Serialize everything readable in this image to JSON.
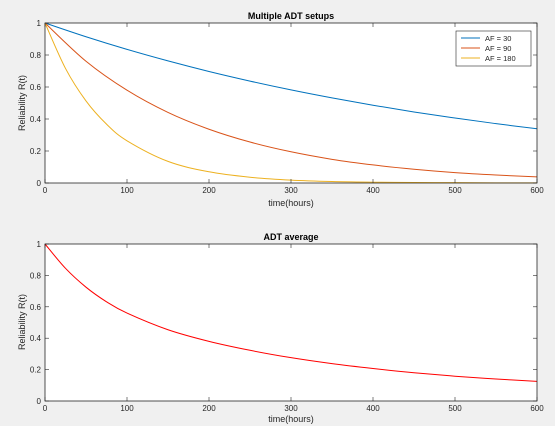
{
  "chart_data": [
    {
      "type": "line",
      "title": "Multiple ADT setups",
      "xlabel": "time(hours)",
      "ylabel": "Reliability R(t)",
      "xlim": [
        0,
        600
      ],
      "ylim": [
        0,
        1
      ],
      "xticks": [
        0,
        100,
        200,
        300,
        400,
        500,
        600
      ],
      "yticks": [
        0,
        0.2,
        0.4,
        0.6,
        0.8,
        1
      ],
      "xtick_labels": [
        "0",
        "100",
        "200",
        "300",
        "400",
        "500",
        "600"
      ],
      "ytick_labels": [
        "0",
        "0.2",
        "0.4",
        "0.6",
        "0.8",
        "1"
      ],
      "legend_position": "top-right",
      "series": [
        {
          "name": "AF = 30",
          "color": "#0072bd",
          "x": [
            0,
            50,
            100,
            150,
            200,
            250,
            300,
            350,
            400,
            450,
            500,
            550,
            600
          ],
          "y": [
            1.0,
            0.914,
            0.835,
            0.763,
            0.697,
            0.637,
            0.582,
            0.532,
            0.486,
            0.444,
            0.406,
            0.371,
            0.339
          ]
        },
        {
          "name": "AF = 90",
          "color": "#d95319",
          "x": [
            0,
            50,
            100,
            150,
            200,
            250,
            300,
            350,
            400,
            450,
            500,
            550,
            600
          ],
          "y": [
            1.0,
            0.761,
            0.58,
            0.441,
            0.336,
            0.256,
            0.195,
            0.148,
            0.113,
            0.086,
            0.065,
            0.05,
            0.038
          ]
        },
        {
          "name": "AF = 180",
          "color": "#edb120",
          "x": [
            0,
            25,
            50,
            75,
            100,
            150,
            200,
            250,
            300,
            350,
            400,
            450,
            500,
            550,
            600
          ],
          "y": [
            1.0,
            0.716,
            0.513,
            0.368,
            0.264,
            0.135,
            0.07,
            0.036,
            0.018,
            0.009,
            0.005,
            0.003,
            0.002,
            0.001,
            0.001
          ]
        }
      ]
    },
    {
      "type": "line",
      "title": "ADT average",
      "xlabel": "time(hours)",
      "ylabel": "Reliability R(t)",
      "xlim": [
        0,
        600
      ],
      "ylim": [
        0,
        1
      ],
      "xticks": [
        0,
        100,
        200,
        300,
        400,
        500,
        600
      ],
      "yticks": [
        0,
        0.2,
        0.4,
        0.6,
        0.8,
        1
      ],
      "xtick_labels": [
        "0",
        "100",
        "200",
        "300",
        "400",
        "500",
        "600"
      ],
      "ytick_labels": [
        "0",
        "0.2",
        "0.4",
        "0.6",
        "0.8",
        "1"
      ],
      "series": [
        {
          "color": "#ff0000",
          "x": [
            0,
            25,
            50,
            75,
            100,
            150,
            200,
            250,
            300,
            350,
            400,
            450,
            500,
            550,
            600
          ],
          "y": [
            1.0,
            0.845,
            0.725,
            0.632,
            0.56,
            0.454,
            0.38,
            0.323,
            0.276,
            0.238,
            0.207,
            0.18,
            0.158,
            0.14,
            0.125
          ]
        }
      ]
    }
  ]
}
